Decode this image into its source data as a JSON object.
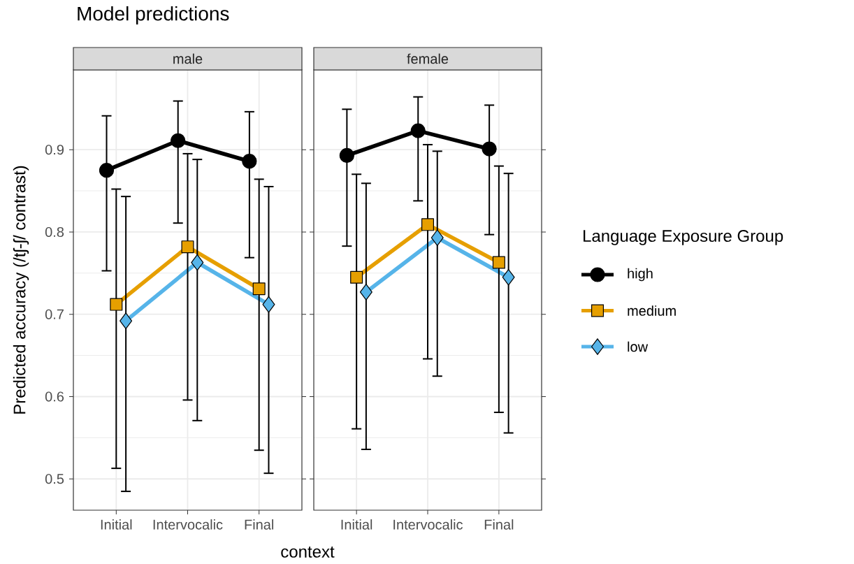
{
  "chart_data": [
    {
      "type": "line",
      "title": "Model predictions",
      "subtitle": "male",
      "xlabel": "context",
      "ylabel": "Predicted accuracy (/tʃ-ʃ/ contrast)",
      "categories": [
        "Initial",
        "Intervocalic",
        "Final"
      ],
      "series": [
        {
          "name": "high",
          "color": "#000000",
          "marker": "circle",
          "values": [
            0.875,
            0.911,
            0.886
          ],
          "errors": [
            [
              0.752,
              0.942
            ],
            [
              0.81,
              0.96
            ],
            [
              0.768,
              0.947
            ]
          ]
        },
        {
          "name": "medium",
          "color": "#e69f00",
          "marker": "square",
          "values": [
            0.712,
            0.782,
            0.731
          ],
          "errors": [
            [
              0.512,
              0.853
            ],
            [
              0.595,
              0.896
            ],
            [
              0.534,
              0.865
            ]
          ]
        },
        {
          "name": "low",
          "color": "#56b4e9",
          "marker": "diamond",
          "values": [
            0.692,
            0.763,
            0.712
          ],
          "errors": [
            [
              0.484,
              0.844
            ],
            [
              0.57,
              0.889
            ],
            [
              0.506,
              0.856
            ]
          ]
        }
      ],
      "ylim": [
        0.462,
        0.997
      ],
      "yticks": [
        0.5,
        0.6,
        0.7,
        0.8,
        0.9
      ],
      "grid": true,
      "legend": "right",
      "legend_title": "Language Exposure Group",
      "line_style": "solid"
    },
    {
      "type": "line",
      "subtitle": "female",
      "categories": [
        "Initial",
        "Intervocalic",
        "Final"
      ],
      "series": [
        {
          "color": "#000000",
          "marker": "circle",
          "values": [
            0.893,
            0.923,
            0.901
          ],
          "errors": [
            [
              0.782,
              0.95
            ],
            [
              0.837,
              0.965
            ],
            [
              0.796,
              0.955
            ]
          ]
        },
        {
          "color": "#e69f00",
          "marker": "square",
          "values": [
            0.745,
            0.809,
            0.763
          ],
          "errors": [
            [
              0.56,
              0.871
            ],
            [
              0.645,
              0.907
            ],
            [
              0.58,
              0.881
            ]
          ]
        },
        {
          "color": "#56b4e9",
          "marker": "diamond",
          "values": [
            0.727,
            0.793,
            0.745
          ],
          "errors": [
            [
              0.535,
              0.86
            ],
            [
              0.624,
              0.899
            ],
            [
              0.555,
              0.872
            ]
          ]
        }
      ],
      "ylim": [
        0.462,
        0.997
      ],
      "yticks": [
        0.5,
        0.6,
        0.7,
        0.8,
        0.9
      ],
      "grid": true,
      "tick_labels": "x",
      "line_style": "solid"
    }
  ]
}
